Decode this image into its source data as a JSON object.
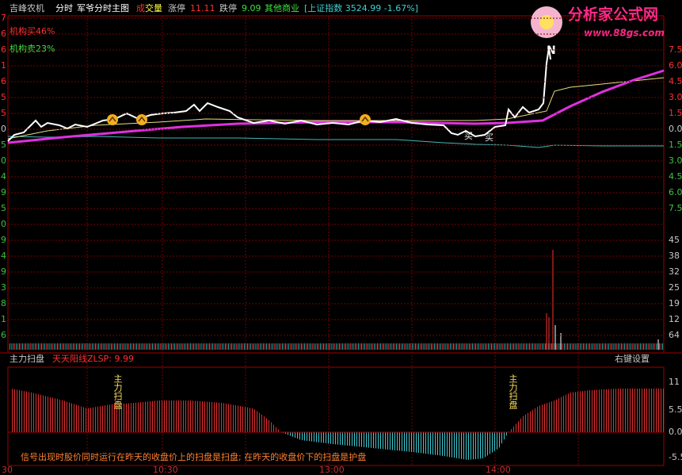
{
  "header": {
    "stock": "吉峰农机",
    "period": "分时",
    "formula": "军爷分时主图",
    "volume_label": [
      "成",
      "交量"
    ],
    "limit_up_label": "涨停",
    "limit_up": "11.11",
    "limit_down_label": "跌停",
    "limit_down": "9.09",
    "sector": "其他商业",
    "index": "[上证指数 3524.99 -1.67%]"
  },
  "logo": {
    "title": "分析家公式网",
    "url": "www.88gs.com"
  },
  "main_chart": {
    "buy_label": "机构买46%",
    "sell_label": "机构卖23%",
    "spike_label": "N",
    "buy_marks": [
      "买",
      "买"
    ],
    "left_axis": [
      "7",
      "6",
      "6",
      "1",
      "6",
      "5",
      "5",
      "0",
      "5",
      "0",
      "4",
      "9",
      "5",
      "0",
      "9",
      "4",
      "9",
      "3",
      "8",
      "1",
      "6"
    ],
    "right_axis": [
      "7.5",
      "6.0",
      "4.5",
      "3.0",
      "1.5",
      "0.0",
      "1.5",
      "3.0",
      "4.5",
      "6.0",
      "7.5",
      "45",
      "38",
      "32",
      "25",
      "19",
      "12",
      "64"
    ]
  },
  "indicator": {
    "name": "主力扫盘",
    "series_label": "天天阳线ZLSP: 9.99",
    "settings": "右键设置",
    "signals": [
      "主力扫盘",
      "主力扫盘"
    ],
    "right_axis": [
      "11",
      "5.5",
      "0.0",
      "-5.5"
    ],
    "note": "信号出现时股价同时运行在昨天的收盘价上的扫盘是扫盘; 在昨天的收盘价下的扫盘是护盘"
  },
  "time_axis": [
    "30",
    "10:30",
    "13:00",
    "14:00"
  ]
}
